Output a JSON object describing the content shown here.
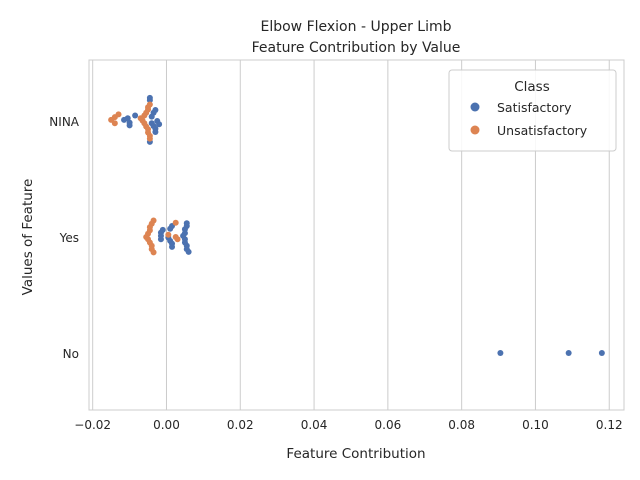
{
  "chart_data": {
    "type": "scatter",
    "subtype": "swarm",
    "title_lines": [
      "Elbow Flexion - Upper Limb",
      "Feature Contribution by Value"
    ],
    "xlabel": "Feature Contribution",
    "ylabel": "Values of Feature",
    "categories": [
      "NINA",
      "Yes",
      "No"
    ],
    "xlim": [
      -0.021,
      0.124
    ],
    "xticks": [
      -0.02,
      0.0,
      0.02,
      0.04,
      0.06,
      0.08,
      0.1,
      0.12
    ],
    "xtick_labels": [
      "−0.02",
      "0.00",
      "0.02",
      "0.04",
      "0.06",
      "0.08",
      "0.10",
      "0.12"
    ],
    "grid": "vertical",
    "legend": {
      "title": "Class",
      "placement": "top-right",
      "entries": [
        {
          "name": "Satisfactory",
          "color": "#4c72b0"
        },
        {
          "name": "Unsatisfactory",
          "color": "#dd8452"
        }
      ]
    },
    "series": [
      {
        "name": "Satisfactory",
        "color": "#4c72b0",
        "points": [
          {
            "category": "NINA",
            "x": -0.0045,
            "spread": -0.42
          },
          {
            "category": "NINA",
            "x": -0.0045,
            "spread": -0.38
          },
          {
            "category": "NINA",
            "x": -0.003,
            "spread": -0.2
          },
          {
            "category": "NINA",
            "x": -0.0035,
            "spread": -0.15
          },
          {
            "category": "NINA",
            "x": -0.0085,
            "spread": -0.1
          },
          {
            "category": "NINA",
            "x": -0.004,
            "spread": -0.08
          },
          {
            "category": "NINA",
            "x": -0.0105,
            "spread": -0.05
          },
          {
            "category": "NINA",
            "x": -0.0115,
            "spread": -0.02
          },
          {
            "category": "NINA",
            "x": -0.0025,
            "spread": 0.0
          },
          {
            "category": "NINA",
            "x": -0.01,
            "spread": 0.03
          },
          {
            "category": "NINA",
            "x": -0.004,
            "spread": 0.04
          },
          {
            "category": "NINA",
            "x": -0.002,
            "spread": 0.06
          },
          {
            "category": "NINA",
            "x": -0.01,
            "spread": 0.08
          },
          {
            "category": "NINA",
            "x": -0.0035,
            "spread": 0.09
          },
          {
            "category": "NINA",
            "x": -0.003,
            "spread": 0.14
          },
          {
            "category": "NINA",
            "x": -0.003,
            "spread": 0.2
          },
          {
            "category": "NINA",
            "x": -0.0045,
            "spread": 0.38
          },
          {
            "category": "Yes",
            "x": 0.0055,
            "spread": -0.25
          },
          {
            "category": "Yes",
            "x": 0.0015,
            "spread": -0.2
          },
          {
            "category": "Yes",
            "x": 0.0055,
            "spread": -0.2
          },
          {
            "category": "Yes",
            "x": 0.001,
            "spread": -0.15
          },
          {
            "category": "Yes",
            "x": 0.005,
            "spread": -0.14
          },
          {
            "category": "Yes",
            "x": -0.001,
            "spread": -0.13
          },
          {
            "category": "Yes",
            "x": -0.0015,
            "spread": -0.08
          },
          {
            "category": "Yes",
            "x": 0.005,
            "spread": -0.07
          },
          {
            "category": "Yes",
            "x": -0.0015,
            "spread": -0.02
          },
          {
            "category": "Yes",
            "x": 0.0045,
            "spread": -0.02
          },
          {
            "category": "Yes",
            "x": 0.0005,
            "spread": 0.01
          },
          {
            "category": "Yes",
            "x": -0.0015,
            "spread": 0.04
          },
          {
            "category": "Yes",
            "x": 0.005,
            "spread": 0.04
          },
          {
            "category": "Yes",
            "x": 0.001,
            "spread": 0.07
          },
          {
            "category": "Yes",
            "x": 0.005,
            "spread": 0.1
          },
          {
            "category": "Yes",
            "x": 0.0015,
            "spread": 0.12
          },
          {
            "category": "Yes",
            "x": 0.0055,
            "spread": 0.16
          },
          {
            "category": "Yes",
            "x": 0.0015,
            "spread": 0.18
          },
          {
            "category": "Yes",
            "x": 0.0055,
            "spread": 0.22
          },
          {
            "category": "Yes",
            "x": 0.006,
            "spread": 0.27
          },
          {
            "category": "No",
            "x": 0.0905,
            "spread": 0.0
          },
          {
            "category": "No",
            "x": 0.109,
            "spread": 0.0
          },
          {
            "category": "No",
            "x": 0.118,
            "spread": 0.0
          }
        ]
      },
      {
        "name": "Unsatisfactory",
        "color": "#dd8452",
        "points": [
          {
            "category": "NINA",
            "x": -0.0045,
            "spread": -0.3
          },
          {
            "category": "NINA",
            "x": -0.005,
            "spread": -0.25
          },
          {
            "category": "NINA",
            "x": -0.005,
            "spread": -0.21
          },
          {
            "category": "NINA",
            "x": -0.0055,
            "spread": -0.15
          },
          {
            "category": "NINA",
            "x": -0.013,
            "spread": -0.12
          },
          {
            "category": "NINA",
            "x": -0.006,
            "spread": -0.1
          },
          {
            "category": "NINA",
            "x": -0.014,
            "spread": -0.07
          },
          {
            "category": "NINA",
            "x": -0.007,
            "spread": -0.05
          },
          {
            "category": "NINA",
            "x": -0.015,
            "spread": -0.02
          },
          {
            "category": "NINA",
            "x": -0.0065,
            "spread": -0.01
          },
          {
            "category": "NINA",
            "x": -0.014,
            "spread": 0.04
          },
          {
            "category": "NINA",
            "x": -0.006,
            "spread": 0.04
          },
          {
            "category": "NINA",
            "x": -0.0055,
            "spread": 0.1
          },
          {
            "category": "NINA",
            "x": -0.005,
            "spread": 0.15
          },
          {
            "category": "NINA",
            "x": -0.005,
            "spread": 0.21
          },
          {
            "category": "NINA",
            "x": -0.0045,
            "spread": 0.27
          },
          {
            "category": "NINA",
            "x": -0.0045,
            "spread": 0.32
          },
          {
            "category": "Yes",
            "x": -0.0035,
            "spread": -0.3
          },
          {
            "category": "Yes",
            "x": -0.004,
            "spread": -0.24
          },
          {
            "category": "Yes",
            "x": 0.0025,
            "spread": -0.26
          },
          {
            "category": "Yes",
            "x": -0.0045,
            "spread": -0.18
          },
          {
            "category": "Yes",
            "x": -0.0045,
            "spread": -0.12
          },
          {
            "category": "Yes",
            "x": -0.005,
            "spread": -0.06
          },
          {
            "category": "Yes",
            "x": 0.0005,
            "spread": -0.04
          },
          {
            "category": "Yes",
            "x": -0.0055,
            "spread": 0.0
          },
          {
            "category": "Yes",
            "x": 0.0025,
            "spread": 0.0
          },
          {
            "category": "Yes",
            "x": -0.005,
            "spread": 0.04
          },
          {
            "category": "Yes",
            "x": 0.003,
            "spread": 0.04
          },
          {
            "category": "Yes",
            "x": -0.0045,
            "spread": 0.1
          },
          {
            "category": "Yes",
            "x": -0.004,
            "spread": 0.16
          },
          {
            "category": "Yes",
            "x": -0.004,
            "spread": 0.22
          },
          {
            "category": "Yes",
            "x": -0.0035,
            "spread": 0.28
          }
        ]
      }
    ]
  }
}
